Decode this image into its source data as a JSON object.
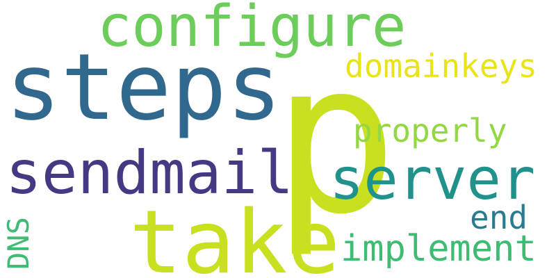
{
  "words": [
    {
      "id": "p",
      "text": "p",
      "color": "#c8e020"
    },
    {
      "id": "steps",
      "text": "steps",
      "color": "#31688e"
    },
    {
      "id": "take",
      "text": "take",
      "color": "#c8e020"
    },
    {
      "id": "configure",
      "text": "configure",
      "color": "#6ccd5a"
    },
    {
      "id": "sendmail",
      "text": "sendmail",
      "color": "#443a83"
    },
    {
      "id": "server",
      "text": "server",
      "color": "#21918c"
    },
    {
      "id": "implement",
      "text": "implement",
      "color": "#3fbc73"
    },
    {
      "id": "domainkeys",
      "text": "domainkeys",
      "color": "#e8e419"
    },
    {
      "id": "properly",
      "text": "properly",
      "color": "#93d741"
    },
    {
      "id": "end",
      "text": "end",
      "color": "#287c8e"
    },
    {
      "id": "DNS",
      "text": "DNS",
      "color": "#3fbc73"
    }
  ]
}
